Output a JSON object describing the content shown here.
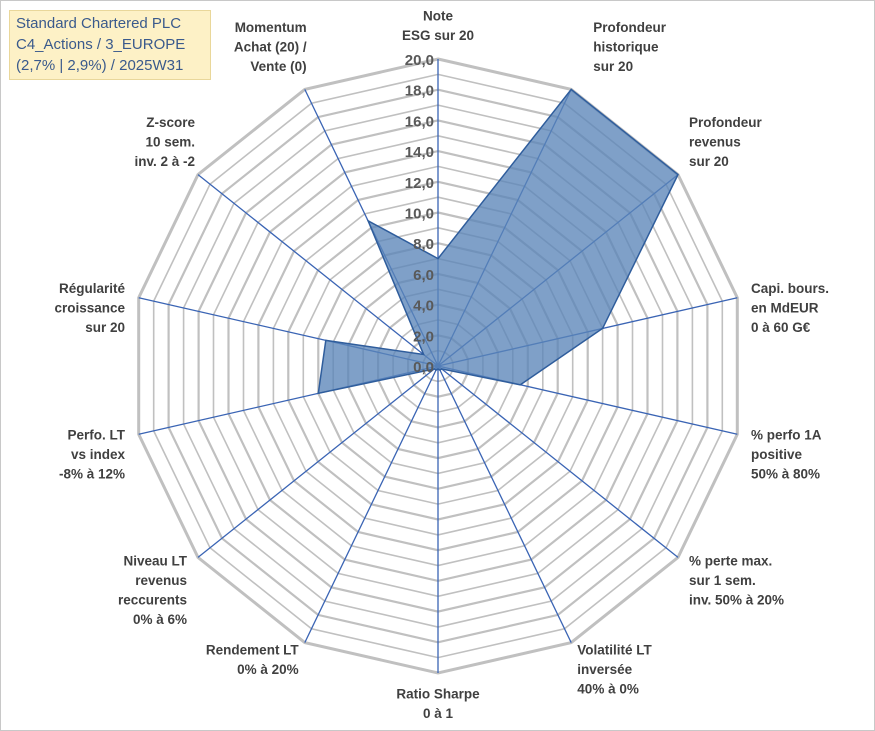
{
  "info": {
    "lines": [
      "Standard Chartered PLC",
      "C4_Actions / 3_EUROPE",
      "(2,7% | 2,9%) / 2025W31"
    ]
  },
  "colors": {
    "fill": "#5b85b8",
    "stroke": "#2f5d9c",
    "ring": "#c0c0c0",
    "spoke": "#3a64b4"
  },
  "chart_data": {
    "type": "radar",
    "title": "",
    "range": [
      0,
      20
    ],
    "tick_step": 2,
    "grid_step": 1,
    "ticks": [
      "0,0",
      "2,0",
      "4,0",
      "6,0",
      "8,0",
      "10,0",
      "12,0",
      "14,0",
      "16,0",
      "18,0",
      "20,0"
    ],
    "legend": "none",
    "axes": [
      {
        "label": [
          "Note",
          "ESG sur 20"
        ],
        "value": 7
      },
      {
        "label": [
          "Profondeur",
          "historique",
          "sur 20"
        ],
        "value": 20
      },
      {
        "label": [
          "Profondeur",
          "revenus",
          "sur 20"
        ],
        "value": 20
      },
      {
        "label": [
          "Capi. bours.",
          "en MdEUR",
          "0 à 60 G€"
        ],
        "value": 11
      },
      {
        "label": [
          "% perfo 1A",
          "positive",
          "50% à 80%"
        ],
        "value": 5.5
      },
      {
        "label": [
          "% perte max.",
          "sur 1 sem.",
          "inv. 50% à 20%"
        ],
        "value": 0.3
      },
      {
        "label": [
          "Volatilité LT",
          "inversée",
          "40% à 0%"
        ],
        "value": 0.3
      },
      {
        "label": [
          "Ratio Sharpe",
          "0 à 1"
        ],
        "value": 0.2
      },
      {
        "label": [
          "Rendement LT",
          "0% à 20%"
        ],
        "value": 0.3
      },
      {
        "label": [
          "Niveau LT",
          "revenus",
          "reccurents",
          "0% à 6%"
        ],
        "value": 0.3
      },
      {
        "label": [
          "Perfo. LT",
          "vs index",
          "-8% à 12%"
        ],
        "value": 8
      },
      {
        "label": [
          "Régularité",
          "croissance",
          "sur 20"
        ],
        "value": 7.5
      },
      {
        "label": [
          "Z-score",
          "10 sem.",
          "inv. 2 à -2"
        ],
        "value": 1.2
      },
      {
        "label": [
          "Momentum",
          "Achat (20) /",
          "Vente (0)"
        ],
        "value": 10.5
      }
    ]
  }
}
